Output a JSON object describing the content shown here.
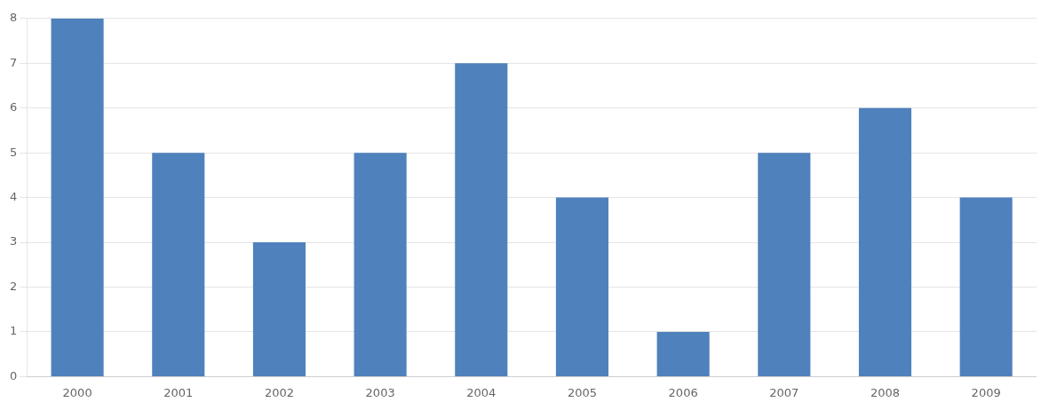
{
  "chart_data": {
    "type": "bar",
    "categories": [
      "2000",
      "2001",
      "2002",
      "2003",
      "2004",
      "2005",
      "2006",
      "2007",
      "2008",
      "2009"
    ],
    "values": [
      8,
      5,
      3,
      5,
      7,
      4,
      1,
      5,
      6,
      4
    ],
    "color": "#4f81bd",
    "ylim": [
      0,
      8
    ],
    "yticks": [
      0,
      1,
      2,
      3,
      4,
      5,
      6,
      7,
      8
    ],
    "grid": true
  }
}
